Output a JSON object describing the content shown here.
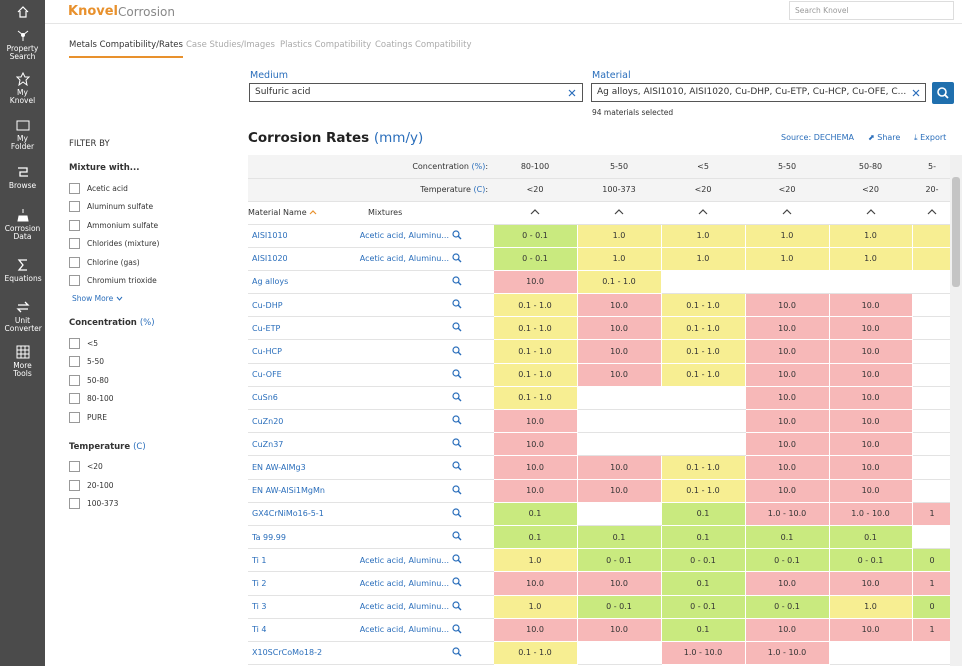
{
  "sidebar": [
    "Property Search",
    "My Knovel",
    "My Folder",
    "Browse",
    "Corrosion Data",
    "Equations",
    "Unit Converter",
    "More Tools"
  ],
  "header": {
    "brand": "Knovel",
    "product": "Corrosion",
    "search_placeholder": "Search Knovel"
  },
  "tabs": [
    "Metals Compatibility/Rates",
    "Case Studies/Images",
    "Plastics Compatibility",
    "Coatings Compatibility"
  ],
  "search": {
    "medium_label": "Medium",
    "medium_value": "Sulfuric acid",
    "material_label": "Material",
    "material_value": "Ag alloys, AISI1010, AISI1020, Cu-DHP, Cu-ETP, Cu-HCP, Cu-OFE, C...",
    "selected_note": "94 materials selected"
  },
  "filters": {
    "title": "FILTER BY",
    "mixture": {
      "label": "Mixture with...",
      "options": [
        "Acetic acid",
        "Aluminum sulfate",
        "Ammonium sulfate",
        "Chlorides (mixture)",
        "Chlorine (gas)",
        "Chromium trioxide"
      ],
      "show_more": "Show More"
    },
    "concentration": {
      "label": "Concentration",
      "unit": "(%)",
      "options": [
        "<5",
        "5-50",
        "50-80",
        "80-100",
        "PURE"
      ]
    },
    "temperature": {
      "label": "Temperature",
      "unit": "(C)",
      "options": [
        "<20",
        "20-100",
        "100-373"
      ]
    }
  },
  "results": {
    "title": "Corrosion Rates",
    "unit": "(mm/y)",
    "source": "Source: DECHEMA",
    "share": "Share",
    "export": "Export",
    "concentration_label": "Concentration",
    "concentration_unit": "(%)",
    "temperature_label": "Temperature",
    "temperature_unit": "(C)",
    "label_suffix": ":",
    "concentrations": [
      "80-100",
      "5-50",
      "<5",
      "5-50",
      "50-80",
      "5-"
    ],
    "temperatures": [
      "<20",
      "100-373",
      "<20",
      "<20",
      "<20",
      "20-"
    ],
    "material_header": "Material Name",
    "mixtures_header": "Mixtures",
    "rows": [
      {
        "material": "AISI1010",
        "mixtures": "Acetic acid, Aluminu...",
        "cells": [
          "0 - 0.1",
          "1.0",
          "1.0",
          "1.0",
          "1.0",
          null
        ],
        "colors": [
          "#c9ea7f",
          "#f7ee92",
          "#f7ee92",
          "#f7ee92",
          "#f7ee92",
          "#f7ee92"
        ]
      },
      {
        "material": "AISI1020",
        "mixtures": "Acetic acid, Aluminu...",
        "cells": [
          "0 - 0.1",
          "1.0",
          "1.0",
          "1.0",
          "1.0",
          null
        ],
        "colors": [
          "#c9ea7f",
          "#f7ee92",
          "#f7ee92",
          "#f7ee92",
          "#f7ee92",
          "#f7ee92"
        ]
      },
      {
        "material": "Ag alloys",
        "mixtures": null,
        "cells": [
          "10.0",
          "0.1 - 1.0",
          null,
          null,
          null,
          null
        ],
        "colors": [
          "#f7b8b8",
          "#f7ee92",
          null,
          null,
          null,
          null
        ]
      },
      {
        "material": "Cu-DHP",
        "mixtures": null,
        "cells": [
          "0.1 - 1.0",
          "10.0",
          "0.1 - 1.0",
          "10.0",
          "10.0",
          null
        ],
        "colors": [
          "#f7ee92",
          "#f7b8b8",
          "#f7ee92",
          "#f7b8b8",
          "#f7b8b8",
          null
        ]
      },
      {
        "material": "Cu-ETP",
        "mixtures": null,
        "cells": [
          "0.1 - 1.0",
          "10.0",
          "0.1 - 1.0",
          "10.0",
          "10.0",
          null
        ],
        "colors": [
          "#f7ee92",
          "#f7b8b8",
          "#f7ee92",
          "#f7b8b8",
          "#f7b8b8",
          null
        ]
      },
      {
        "material": "Cu-HCP",
        "mixtures": null,
        "cells": [
          "0.1 - 1.0",
          "10.0",
          "0.1 - 1.0",
          "10.0",
          "10.0",
          null
        ],
        "colors": [
          "#f7ee92",
          "#f7b8b8",
          "#f7ee92",
          "#f7b8b8",
          "#f7b8b8",
          null
        ]
      },
      {
        "material": "Cu-OFE",
        "mixtures": null,
        "cells": [
          "0.1 - 1.0",
          "10.0",
          "0.1 - 1.0",
          "10.0",
          "10.0",
          null
        ],
        "colors": [
          "#f7ee92",
          "#f7b8b8",
          "#f7ee92",
          "#f7b8b8",
          "#f7b8b8",
          null
        ]
      },
      {
        "material": "CuSn6",
        "mixtures": null,
        "cells": [
          "0.1 - 1.0",
          null,
          null,
          "10.0",
          "10.0",
          null
        ],
        "colors": [
          "#f7ee92",
          null,
          null,
          "#f7b8b8",
          "#f7b8b8",
          null
        ]
      },
      {
        "material": "CuZn20",
        "mixtures": null,
        "cells": [
          "10.0",
          null,
          null,
          "10.0",
          "10.0",
          null
        ],
        "colors": [
          "#f7b8b8",
          null,
          null,
          "#f7b8b8",
          "#f7b8b8",
          null
        ]
      },
      {
        "material": "CuZn37",
        "mixtures": null,
        "cells": [
          "10.0",
          null,
          null,
          "10.0",
          "10.0",
          null
        ],
        "colors": [
          "#f7b8b8",
          null,
          null,
          "#f7b8b8",
          "#f7b8b8",
          null
        ]
      },
      {
        "material": "EN AW-AlMg3",
        "mixtures": null,
        "cells": [
          "10.0",
          "10.0",
          "0.1 - 1.0",
          "10.0",
          "10.0",
          null
        ],
        "colors": [
          "#f7b8b8",
          "#f7b8b8",
          "#f7ee92",
          "#f7b8b8",
          "#f7b8b8",
          null
        ]
      },
      {
        "material": "EN AW-AlSi1MgMn",
        "mixtures": null,
        "cells": [
          "10.0",
          "10.0",
          "0.1 - 1.0",
          "10.0",
          "10.0",
          null
        ],
        "colors": [
          "#f7b8b8",
          "#f7b8b8",
          "#f7ee92",
          "#f7b8b8",
          "#f7b8b8",
          null
        ]
      },
      {
        "material": "GX4CrNiMo16-5-1",
        "mixtures": null,
        "cells": [
          "0.1",
          null,
          "0.1",
          "1.0 - 10.0",
          "1.0 - 10.0",
          "1"
        ],
        "colors": [
          "#c9ea7f",
          null,
          "#c9ea7f",
          "#f7b8b8",
          "#f7b8b8",
          "#f7b8b8"
        ]
      },
      {
        "material": "Ta 99.99",
        "mixtures": null,
        "cells": [
          "0.1",
          "0.1",
          "0.1",
          "0.1",
          "0.1",
          null
        ],
        "colors": [
          "#c9ea7f",
          "#c9ea7f",
          "#c9ea7f",
          "#c9ea7f",
          "#c9ea7f",
          null
        ]
      },
      {
        "material": "Ti 1",
        "mixtures": "Acetic acid, Aluminu...",
        "cells": [
          "1.0",
          "0 - 0.1",
          "0 - 0.1",
          "0 - 0.1",
          "0 - 0.1",
          "0"
        ],
        "colors": [
          "#f7ee92",
          "#c9ea7f",
          "#c9ea7f",
          "#c9ea7f",
          "#c9ea7f",
          "#c9ea7f"
        ]
      },
      {
        "material": "Ti 2",
        "mixtures": "Acetic acid, Aluminu...",
        "cells": [
          "10.0",
          "10.0",
          "0.1",
          "10.0",
          "10.0",
          "1"
        ],
        "colors": [
          "#f7b8b8",
          "#f7b8b8",
          "#c9ea7f",
          "#f7b8b8",
          "#f7b8b8",
          "#f7b8b8"
        ]
      },
      {
        "material": "Ti 3",
        "mixtures": "Acetic acid, Aluminu...",
        "cells": [
          "1.0",
          "0 - 0.1",
          "0 - 0.1",
          "0 - 0.1",
          "1.0",
          "0"
        ],
        "colors": [
          "#f7ee92",
          "#c9ea7f",
          "#c9ea7f",
          "#c9ea7f",
          "#f7ee92",
          "#c9ea7f"
        ]
      },
      {
        "material": "Ti 4",
        "mixtures": "Acetic acid, Aluminu...",
        "cells": [
          "10.0",
          "10.0",
          "0.1",
          "10.0",
          "10.0",
          "1"
        ],
        "colors": [
          "#f7b8b8",
          "#f7b8b8",
          "#c9ea7f",
          "#f7b8b8",
          "#f7b8b8",
          "#f7b8b8"
        ]
      },
      {
        "material": "X10SCrCoMo18-2",
        "mixtures": null,
        "cells": [
          "0.1 - 1.0",
          null,
          "1.0 - 10.0",
          "1.0 - 10.0",
          null,
          null
        ],
        "colors": [
          "#f7ee92",
          null,
          "#f7b8b8",
          "#f7b8b8",
          null,
          null
        ]
      }
    ]
  }
}
